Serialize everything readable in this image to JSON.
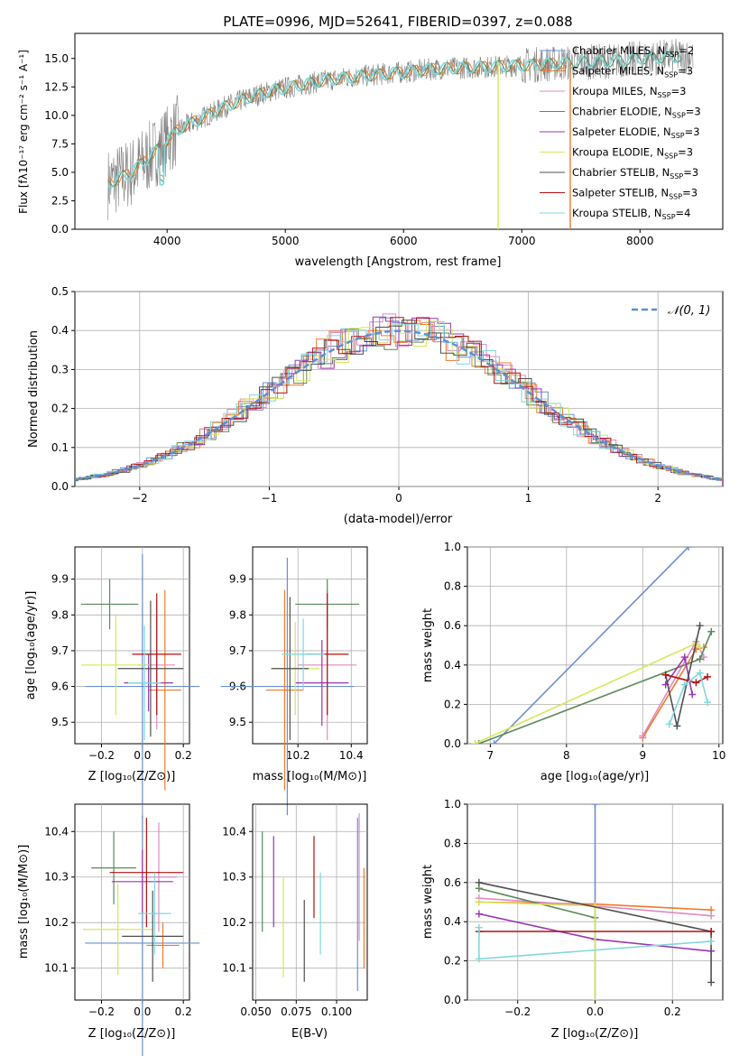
{
  "figure_title": "PLATE=0996, MJD=52641, FIBERID=0397, z=0.088",
  "colors": {
    "spec": "#808080",
    "normal": "#5b8fd6",
    "grid": "#b0b0b0",
    "models": [
      "#6b8fd4",
      "#f07a2a",
      "#e08ac0",
      "#5a8a5a",
      "#9a35b0",
      "#d4e85a",
      "#505050",
      "#b01010",
      "#7fd8dc"
    ]
  },
  "chart_data": [
    {
      "id": "spectrum",
      "type": "line",
      "title": "PLATE=0996, MJD=52641, FIBERID=0397, z=0.088",
      "xlabel": "wavelength [Angstrom, rest frame]",
      "ylabel": "Flux [fλ10⁻¹⁷ erg cm⁻² s⁻¹ A⁻¹]",
      "xlim": [
        3220,
        8700
      ],
      "ylim": [
        0,
        17.2
      ],
      "xticks": [
        "4000",
        "5000",
        "6000",
        "7000",
        "8000"
      ],
      "yticks": [
        "0.0",
        "2.5",
        "5.0",
        "7.5",
        "10.0",
        "12.5",
        "15.0"
      ],
      "legend_position": "right",
      "legend": [
        {
          "label": "Chabrier MILES, N",
          "sub": "SSP",
          "suffix": "=2"
        },
        {
          "label": "Salpeter MILES, N",
          "sub": "SSP",
          "suffix": "=3"
        },
        {
          "label": "Kroupa MILES, N",
          "sub": "SSP",
          "suffix": "=3"
        },
        {
          "label": "Chabrier ELODIE, N",
          "sub": "SSP",
          "suffix": "=3"
        },
        {
          "label": "Salpeter ELODIE, N",
          "sub": "SSP",
          "suffix": "=3"
        },
        {
          "label": "Kroupa ELODIE, N",
          "sub": "SSP",
          "suffix": "=3"
        },
        {
          "label": "Chabrier STELIB, N",
          "sub": "SSP",
          "suffix": "=3"
        },
        {
          "label": "Salpeter STELIB, N",
          "sub": "SSP",
          "suffix": "=3"
        },
        {
          "label": "Kroupa STELIB, N",
          "sub": "SSP",
          "suffix": "=4"
        }
      ],
      "continuum": [
        [
          3500,
          4.0
        ],
        [
          3700,
          5.0
        ],
        [
          3900,
          6.8
        ],
        [
          4100,
          8.8
        ],
        [
          4300,
          9.8
        ],
        [
          4500,
          10.8
        ],
        [
          4700,
          11.6
        ],
        [
          4900,
          12.2
        ],
        [
          5100,
          12.6
        ],
        [
          5300,
          13.0
        ],
        [
          5500,
          13.3
        ],
        [
          5800,
          13.6
        ],
        [
          6000,
          13.8
        ],
        [
          6300,
          14.1
        ],
        [
          6600,
          14.2
        ],
        [
          7000,
          14.4
        ],
        [
          7400,
          14.6
        ],
        [
          7800,
          14.8
        ],
        [
          8000,
          15.0
        ],
        [
          8200,
          15.1
        ],
        [
          8400,
          15.2
        ]
      ],
      "vertical_spikes": [
        {
          "x": 6800,
          "color_index": 5
        },
        {
          "x": 7410,
          "color_index": 1
        }
      ]
    },
    {
      "id": "residuals",
      "type": "step",
      "xlabel": "(data-model)/error",
      "ylabel": "Normed distribution",
      "xlim": [
        -2.5,
        2.5
      ],
      "ylim": [
        0,
        0.5
      ],
      "xticks": [
        "−2",
        "−1",
        "0",
        "1",
        "2"
      ],
      "yticks": [
        "0.0",
        "0.1",
        "0.2",
        "0.3",
        "0.4",
        "0.5"
      ],
      "legend": [
        "𝒩(0, 1)"
      ],
      "legend_position": "top-right",
      "bin_width": 0.1
    },
    {
      "id": "age_vs_Z",
      "type": "scatter",
      "xlabel": "Z [log₁₀(Z/Z⊙)]",
      "ylabel": "age  [log₁₀(age/yr)]",
      "xlim": [
        -0.33,
        0.23
      ],
      "ylim": [
        9.44,
        9.99
      ],
      "xticks": [
        "−0.2",
        "0.0",
        "0.2"
      ],
      "yticks": [
        "9.5",
        "9.6",
        "9.7",
        "9.8",
        "9.9"
      ],
      "points": [
        {
          "x": 0.0,
          "y": 9.6,
          "xerr": 0.28,
          "yerr": 0.37,
          "c": 0
        },
        {
          "x": 0.11,
          "y": 9.59,
          "xerr": 0.08,
          "yerr": 0.28,
          "c": 1
        },
        {
          "x": 0.07,
          "y": 9.66,
          "xerr": 0.09,
          "yerr": 0.18,
          "c": 2
        },
        {
          "x": -0.16,
          "y": 9.83,
          "xerr": 0.14,
          "yerr": 0.07,
          "c": 3
        },
        {
          "x": 0.03,
          "y": 9.61,
          "xerr": 0.12,
          "yerr": 0.08,
          "c": 4
        },
        {
          "x": -0.13,
          "y": 9.66,
          "xerr": 0.17,
          "yerr": 0.14,
          "c": 5
        },
        {
          "x": 0.04,
          "y": 9.65,
          "xerr": 0.16,
          "yerr": 0.19,
          "c": 6
        },
        {
          "x": 0.07,
          "y": 9.69,
          "xerr": 0.12,
          "yerr": 0.17,
          "c": 7
        },
        {
          "x": 0.01,
          "y": 9.61,
          "xerr": 0.08,
          "yerr": 0.16,
          "c": 8
        }
      ]
    },
    {
      "id": "age_vs_mass",
      "type": "scatter",
      "xlabel": "mass [log₁₀(M/M⊙)]",
      "ylabel": "",
      "xlim": [
        10.03,
        10.46
      ],
      "ylim": [
        9.44,
        9.99
      ],
      "xticks": [
        "10.2",
        "10.4"
      ],
      "yticks": [
        "9.5",
        "9.6",
        "9.7",
        "9.8",
        "9.9"
      ],
      "points": [
        {
          "x": 10.16,
          "y": 9.6,
          "xerr": 0.25,
          "yerr": 0.36,
          "c": 0
        },
        {
          "x": 10.15,
          "y": 9.59,
          "xerr": 0.07,
          "yerr": 0.28,
          "c": 1
        },
        {
          "x": 10.31,
          "y": 9.66,
          "xerr": 0.11,
          "yerr": 0.21,
          "c": 2
        },
        {
          "x": 10.31,
          "y": 9.83,
          "xerr": 0.12,
          "yerr": 0.07,
          "c": 3
        },
        {
          "x": 10.29,
          "y": 9.61,
          "xerr": 0.1,
          "yerr": 0.12,
          "c": 4
        },
        {
          "x": 10.19,
          "y": 9.65,
          "xerr": 0.09,
          "yerr": 0.13,
          "c": 5
        },
        {
          "x": 10.17,
          "y": 9.65,
          "xerr": 0.07,
          "yerr": 0.2,
          "c": 6
        },
        {
          "x": 10.31,
          "y": 9.69,
          "xerr": 0.08,
          "yerr": 0.17,
          "c": 7
        },
        {
          "x": 10.22,
          "y": 9.69,
          "xerr": 0.08,
          "yerr": 0.1,
          "c": 8
        }
      ]
    },
    {
      "id": "weight_vs_age",
      "type": "line",
      "xlabel": "age  [log₁₀(age/yr)]",
      "ylabel": "mass weight",
      "xlim": [
        6.7,
        10.05
      ],
      "ylim": [
        0,
        1.0
      ],
      "xticks": [
        "7",
        "8",
        "9",
        "10"
      ],
      "yticks": [
        "0.0",
        "0.2",
        "0.4",
        "0.6",
        "0.8",
        "1.0"
      ],
      "series": [
        {
          "c": 0,
          "points": [
            [
              7.05,
              0.0
            ],
            [
              9.6,
              1.0
            ]
          ]
        },
        {
          "c": 1,
          "points": [
            [
              9.0,
              0.03
            ],
            [
              9.7,
              0.48
            ],
            [
              9.8,
              0.49
            ]
          ]
        },
        {
          "c": 2,
          "points": [
            [
              9.0,
              0.04
            ],
            [
              9.7,
              0.52
            ],
            [
              9.8,
              0.44
            ]
          ]
        },
        {
          "c": 3,
          "points": [
            [
              6.85,
              0.0
            ],
            [
              9.75,
              0.43
            ],
            [
              9.9,
              0.57
            ]
          ]
        },
        {
          "c": 4,
          "points": [
            [
              9.3,
              0.3
            ],
            [
              9.55,
              0.44
            ],
            [
              9.65,
              0.25
            ]
          ]
        },
        {
          "c": 5,
          "points": [
            [
              6.8,
              0.0
            ],
            [
              9.7,
              0.51
            ],
            [
              9.75,
              0.49
            ]
          ]
        },
        {
          "c": 6,
          "points": [
            [
              9.3,
              0.35
            ],
            [
              9.45,
              0.09
            ],
            [
              9.75,
              0.6
            ]
          ]
        },
        {
          "c": 7,
          "points": [
            [
              9.3,
              0.35
            ],
            [
              9.7,
              0.31
            ],
            [
              9.85,
              0.34
            ]
          ]
        },
        {
          "c": 8,
          "points": [
            [
              9.35,
              0.1
            ],
            [
              9.55,
              0.3
            ],
            [
              9.75,
              0.36
            ],
            [
              9.85,
              0.21
            ]
          ]
        }
      ]
    },
    {
      "id": "mass_vs_Z",
      "type": "scatter",
      "xlabel": "Z [log₁₀(Z/Z⊙)]",
      "ylabel": "mass [log₁₀(M/M⊙)]",
      "xlim": [
        -0.33,
        0.23
      ],
      "ylim": [
        10.03,
        10.46
      ],
      "xticks": [
        "−0.2",
        "0.0",
        "0.2"
      ],
      "yticks": [
        "10.1",
        "10.2",
        "10.3",
        "10.4"
      ],
      "points": [
        {
          "x": 0.0,
          "y": 10.155,
          "xerr": 0.28,
          "yerr": 0.28,
          "c": 0
        },
        {
          "x": 0.1,
          "y": 10.15,
          "xerr": 0.08,
          "yerr": 0.05,
          "c": 1
        },
        {
          "x": 0.08,
          "y": 10.3,
          "xerr": 0.09,
          "yerr": 0.12,
          "c": 2
        },
        {
          "x": -0.14,
          "y": 10.32,
          "xerr": 0.11,
          "yerr": 0.08,
          "c": 3
        },
        {
          "x": 0.0,
          "y": 10.29,
          "xerr": 0.15,
          "yerr": 0.07,
          "c": 4
        },
        {
          "x": -0.12,
          "y": 10.185,
          "xerr": 0.17,
          "yerr": 0.1,
          "c": 5
        },
        {
          "x": 0.05,
          "y": 10.17,
          "xerr": 0.15,
          "yerr": 0.1,
          "c": 6
        },
        {
          "x": 0.02,
          "y": 10.31,
          "xerr": 0.18,
          "yerr": 0.12,
          "c": 7
        },
        {
          "x": 0.06,
          "y": 10.22,
          "xerr": 0.08,
          "yerr": 0.09,
          "c": 8
        }
      ]
    },
    {
      "id": "mass_vs_EBV",
      "type": "errorbar",
      "xlabel": "E(B-V)",
      "ylabel": "",
      "xlim": [
        0.048,
        0.119
      ],
      "ylim": [
        10.03,
        10.46
      ],
      "xticks": [
        "0.050",
        "0.075",
        "0.100"
      ],
      "yticks": [
        "10.1",
        "10.2",
        "10.3",
        "10.4"
      ],
      "points": [
        {
          "x": 0.054,
          "y": 10.29,
          "yerr": 0.11,
          "c": 3
        },
        {
          "x": 0.061,
          "y": 10.29,
          "yerr": 0.1,
          "c": 4
        },
        {
          "x": 0.067,
          "y": 10.19,
          "yerr": 0.11,
          "c": 5
        },
        {
          "x": 0.08,
          "y": 10.16,
          "yerr": 0.09,
          "c": 6
        },
        {
          "x": 0.086,
          "y": 10.3,
          "yerr": 0.09,
          "c": 7
        },
        {
          "x": 0.09,
          "y": 10.22,
          "yerr": 0.09,
          "c": 8
        },
        {
          "x": 0.113,
          "y": 10.24,
          "yerr": 0.19,
          "c": 0
        },
        {
          "x": 0.114,
          "y": 10.3,
          "yerr": 0.14,
          "c": 2
        },
        {
          "x": 0.117,
          "y": 10.21,
          "yerr": 0.11,
          "c": 1
        }
      ]
    },
    {
      "id": "weight_vs_Z",
      "type": "line",
      "xlabel": "Z [log₁₀(Z/Z⊙)]",
      "ylabel": "mass weight",
      "xlim": [
        -0.33,
        0.33
      ],
      "ylim": [
        0,
        1.0
      ],
      "xticks": [
        "−0.2",
        "0.0",
        "0.2"
      ],
      "yticks": [
        "0.0",
        "0.2",
        "0.4",
        "0.6",
        "0.8",
        "1.0"
      ],
      "series": [
        {
          "c": 0,
          "points": [
            [
              0.0,
              0.0
            ],
            [
              0.0,
              1.0
            ]
          ]
        },
        {
          "c": 1,
          "points": [
            [
              -0.3,
              0.5
            ],
            [
              0.0,
              0.49
            ],
            [
              0.3,
              0.46
            ]
          ]
        },
        {
          "c": 2,
          "points": [
            [
              -0.3,
              0.52
            ],
            [
              0.0,
              0.48
            ],
            [
              0.3,
              0.43
            ]
          ]
        },
        {
          "c": 3,
          "points": [
            [
              -0.3,
              0.57
            ],
            [
              0.0,
              0.42
            ]
          ]
        },
        {
          "c": 4,
          "points": [
            [
              -0.3,
              0.44
            ],
            [
              0.0,
              0.31
            ],
            [
              0.3,
              0.25
            ]
          ]
        },
        {
          "c": 5,
          "points": [
            [
              -0.3,
              0.5
            ],
            [
              0.0,
              0.48
            ],
            [
              0.0,
              0.0
            ]
          ]
        },
        {
          "c": 6,
          "points": [
            [
              -0.3,
              0.6
            ],
            [
              0.3,
              0.35
            ],
            [
              0.3,
              0.09
            ]
          ]
        },
        {
          "c": 7,
          "points": [
            [
              -0.3,
              0.35
            ],
            [
              0.3,
              0.35
            ]
          ]
        },
        {
          "c": 8,
          "points": [
            [
              -0.3,
              0.37
            ],
            [
              -0.3,
              0.21
            ],
            [
              0.3,
              0.3
            ]
          ]
        }
      ]
    }
  ]
}
